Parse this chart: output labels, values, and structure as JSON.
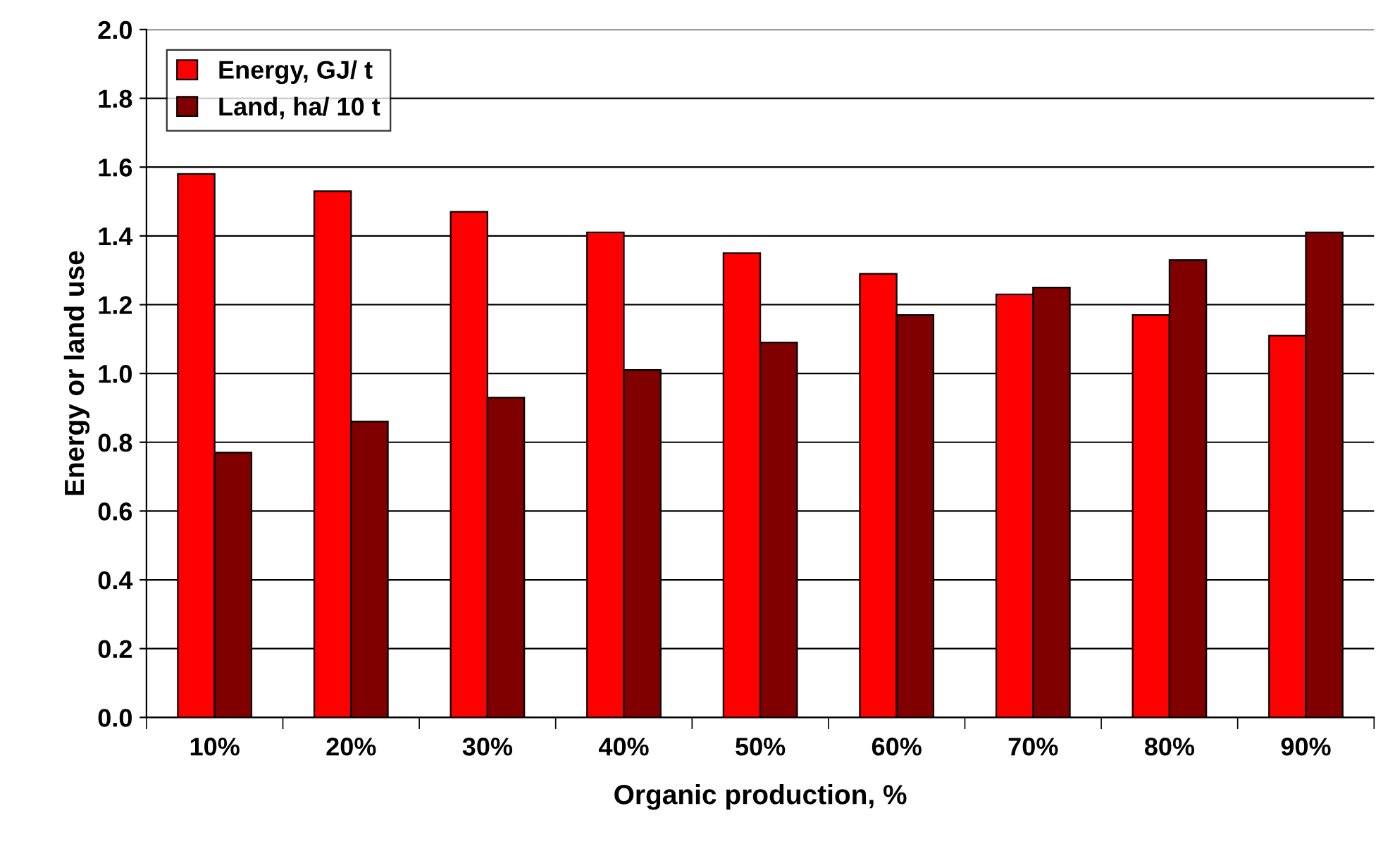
{
  "chart_data": {
    "type": "bar",
    "xlabel": "Organic production, %",
    "ylabel": "Energy or land use",
    "categories": [
      "10%",
      "20%",
      "30%",
      "40%",
      "50%",
      "60%",
      "70%",
      "80%",
      "90%"
    ],
    "series": [
      {
        "name": "Energy, GJ/ t",
        "color": "#ff0000",
        "values": [
          1.58,
          1.53,
          1.47,
          1.41,
          1.35,
          1.29,
          1.23,
          1.17,
          1.11
        ]
      },
      {
        "name": "Land, ha/ 10 t",
        "color": "#800000",
        "values": [
          0.77,
          0.86,
          0.93,
          1.01,
          1.09,
          1.17,
          1.25,
          1.33,
          1.41
        ]
      }
    ],
    "ylim": [
      0,
      2
    ],
    "yticks": [
      {
        "value": 0,
        "label": "0.0"
      },
      {
        "value": 0.2,
        "label": "0.2"
      },
      {
        "value": 0.4,
        "label": "0.4"
      },
      {
        "value": 0.6,
        "label": "0.6"
      },
      {
        "value": 0.8,
        "label": "0.8"
      },
      {
        "value": 1,
        "label": "1.0"
      },
      {
        "value": 1.2,
        "label": "1.2"
      },
      {
        "value": 1.4,
        "label": "1.4"
      },
      {
        "value": 1.6,
        "label": "1.6"
      },
      {
        "value": 1.8,
        "label": "1.8"
      },
      {
        "value": 2,
        "label": "2.0"
      }
    ],
    "grid": "y",
    "legend": "top left"
  }
}
